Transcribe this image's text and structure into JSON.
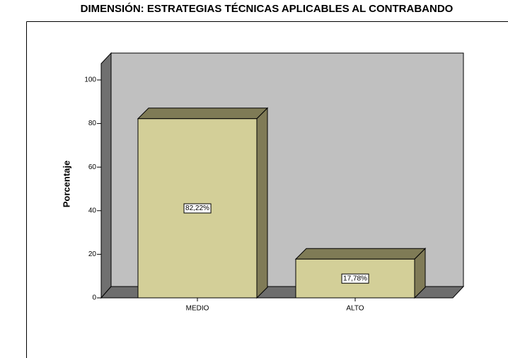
{
  "chart_data": {
    "type": "bar",
    "title": "DIMENSIÓN: ESTRATEGIAS TÉCNICAS APLICABLES AL CONTRABANDO",
    "y_label": "Porcentaje",
    "categories": [
      "MEDIO",
      "ALTO"
    ],
    "values": [
      82.22,
      17.78
    ],
    "value_labels": [
      "82,22%",
      "17,78%"
    ],
    "color": "#d3cf98",
    "ylim": [
      0,
      100
    ],
    "yticks": [
      0,
      20,
      40,
      60,
      80,
      100
    ]
  }
}
